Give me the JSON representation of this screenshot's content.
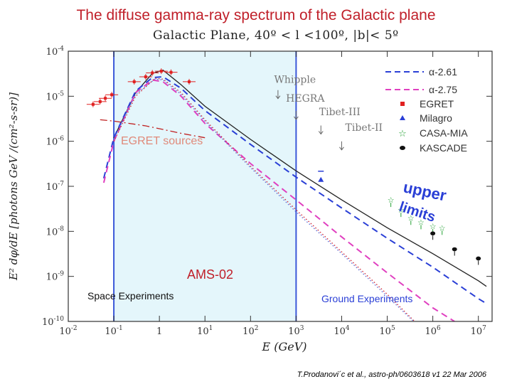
{
  "slide_title": "The diffuse gamma-ray spectrum of the Galactic plane",
  "citation": "T.Prodanovi´c et al., astro-ph/0603618 v1 22 Mar 2006",
  "chart_data": {
    "type": "line",
    "title": "Galactic Plane, 40º < l <100º, |b|< 5º",
    "xlabel": "E (GeV)",
    "ylabel": "E² dφ/dE [photons GeV /(cm²-s-sr)]",
    "x_scale": "log",
    "y_scale": "log",
    "xlim": [
      0.01,
      20000000
    ],
    "ylim": [
      1e-10,
      0.0001
    ],
    "x_ticks": [
      {
        "v": 0.01,
        "b": "10",
        "e": "-2"
      },
      {
        "v": 0.1,
        "b": "10",
        "e": "-1"
      },
      {
        "v": 1,
        "b": "1",
        "e": ""
      },
      {
        "v": 10,
        "b": "10",
        "e": "1"
      },
      {
        "v": 100,
        "b": "10",
        "e": "2"
      },
      {
        "v": 1000,
        "b": "10",
        "e": "3"
      },
      {
        "v": 10000,
        "b": "10",
        "e": "4"
      },
      {
        "v": 100000,
        "b": "10",
        "e": "5"
      },
      {
        "v": 1000000,
        "b": "10",
        "e": "6"
      },
      {
        "v": 10000000,
        "b": "10",
        "e": "7"
      }
    ],
    "y_ticks": [
      {
        "v": 0.0001,
        "b": "10",
        "e": "-4"
      },
      {
        "v": 1e-05,
        "b": "10",
        "e": "-5"
      },
      {
        "v": 1e-06,
        "b": "10",
        "e": "-6"
      },
      {
        "v": 1e-07,
        "b": "10",
        "e": "-7"
      },
      {
        "v": 1e-08,
        "b": "10",
        "e": "-8"
      },
      {
        "v": 1e-09,
        "b": "10",
        "e": "-9"
      },
      {
        "v": 1e-10,
        "b": "10",
        "e": "-10"
      }
    ],
    "legend": [
      {
        "label": "α-2.61",
        "marker": "dashed",
        "color": "#2a3fd6"
      },
      {
        "label": "α-2.75",
        "marker": "dashed",
        "color": "#e040c0"
      },
      {
        "label": "EGRET",
        "marker": "square",
        "color": "#e02020"
      },
      {
        "label": "Milagro",
        "marker": "triangle",
        "color": "#2a3fd6"
      },
      {
        "label": "CASA-MIA",
        "marker": "star",
        "color": "#22a032"
      },
      {
        "label": "KASCADE",
        "marker": "circle",
        "color": "#111111"
      }
    ],
    "series": [
      {
        "name": "total",
        "style": "solid",
        "color": "#222222",
        "points": [
          [
            0.1,
            1.2e-06
          ],
          [
            0.3,
            1.2e-05
          ],
          [
            0.7,
            3.2e-05
          ],
          [
            1.2,
            3.8e-05
          ],
          [
            3,
            1.8e-05
          ],
          [
            10,
            6e-06
          ],
          [
            100,
            1.1e-06
          ],
          [
            1000,
            2.2e-07
          ],
          [
            10000,
            5e-08
          ],
          [
            100000,
            1.2e-08
          ],
          [
            1000000,
            3.2e-09
          ],
          [
            10000000,
            8e-10
          ],
          [
            15000000,
            6e-10
          ]
        ]
      },
      {
        "name": "α-2.61",
        "style": "dashed",
        "color": "#2a3fd6",
        "points": [
          [
            0.06,
            1.5e-07
          ],
          [
            0.1,
            1.2e-06
          ],
          [
            0.3,
            1.3e-05
          ],
          [
            0.7,
            2.6e-05
          ],
          [
            1.2,
            2.7e-05
          ],
          [
            3,
            1.5e-05
          ],
          [
            10,
            4.8e-06
          ],
          [
            100,
            8.5e-07
          ],
          [
            1000,
            1.6e-07
          ],
          [
            10000,
            3.3e-08
          ],
          [
            100000,
            7e-09
          ],
          [
            1000000,
            1.6e-09
          ],
          [
            10000000,
            3.2e-10
          ],
          [
            15000000,
            2.5e-10
          ]
        ]
      },
      {
        "name": "α-2.75",
        "style": "dashed",
        "color": "#e040c0",
        "points": [
          [
            0.06,
            1.2e-07
          ],
          [
            0.1,
            1e-06
          ],
          [
            0.3,
            1.2e-05
          ],
          [
            0.7,
            2.3e-05
          ],
          [
            1.2,
            2.1e-05
          ],
          [
            3,
            1e-05
          ],
          [
            10,
            2.5e-06
          ],
          [
            100,
            3.2e-07
          ],
          [
            1000,
            5e-08
          ],
          [
            10000,
            7.5e-09
          ],
          [
            100000,
            1.2e-09
          ],
          [
            1000000,
            2e-10
          ],
          [
            3000000,
            1e-10
          ]
        ]
      },
      {
        "name": "diffuse-dotted-red",
        "style": "dotted",
        "color": "#d02030",
        "points": [
          [
            0.1,
            1e-06
          ],
          [
            0.3,
            1e-05
          ],
          [
            0.8,
            2.5e-05
          ],
          [
            1.2,
            2.4e-05
          ],
          [
            3,
            1.2e-05
          ],
          [
            10,
            3e-06
          ],
          [
            100,
            2.8e-07
          ],
          [
            1000,
            3e-08
          ],
          [
            10000,
            3.5e-09
          ],
          [
            100000,
            4e-10
          ],
          [
            400000,
            1e-10
          ]
        ]
      },
      {
        "name": "diffuse-dotted-blue",
        "style": "dotted",
        "color": "#5a6ad8",
        "points": [
          [
            0.1,
            1.1e-06
          ],
          [
            0.3,
            1.1e-05
          ],
          [
            0.8,
            2.4e-05
          ],
          [
            1.2,
            2.3e-05
          ],
          [
            3,
            1.1e-05
          ],
          [
            10,
            2.8e-06
          ],
          [
            100,
            2.6e-07
          ],
          [
            1000,
            2.7e-08
          ],
          [
            10000,
            3.2e-09
          ],
          [
            100000,
            3.6e-10
          ],
          [
            380000,
            1e-10
          ]
        ]
      },
      {
        "name": "EGRET sources",
        "style": "dashdot",
        "color": "#c02020",
        "points": [
          [
            0.05,
            3e-06
          ],
          [
            0.1,
            2.8e-06
          ],
          [
            0.5,
            2.2e-06
          ],
          [
            1,
            1.9e-06
          ],
          [
            3,
            1.5e-06
          ],
          [
            10,
            1.2e-06
          ]
        ]
      }
    ],
    "egret_points": [
      {
        "x": 0.035,
        "y": 6.6e-06
      },
      {
        "x": 0.05,
        "y": 7.6e-06
      },
      {
        "x": 0.065,
        "y": 9e-06
      },
      {
        "x": 0.09,
        "y": 1.08e-05
      },
      {
        "x": 0.28,
        "y": 2.1e-05
      },
      {
        "x": 0.5,
        "y": 2.7e-05
      },
      {
        "x": 0.7,
        "y": 3.3e-05
      },
      {
        "x": 1.1,
        "y": 3.6e-05
      },
      {
        "x": 1.8,
        "y": 3.4e-05
      },
      {
        "x": 4.5,
        "y": 2.1e-05
      }
    ],
    "milagro_points": [
      {
        "x": 3500,
        "y": 1.4e-07
      }
    ],
    "casa_mia_points": [
      {
        "x": 120000,
        "y": 5e-08
      },
      {
        "x": 200000,
        "y": 3e-08
      },
      {
        "x": 330000,
        "y": 2e-08
      },
      {
        "x": 550000,
        "y": 1.6e-08
      },
      {
        "x": 1000000,
        "y": 1.3e-08
      },
      {
        "x": 1600000,
        "y": 1.2e-08
      }
    ],
    "kascade_points": [
      {
        "x": 1000000,
        "y": 9e-09
      },
      {
        "x": 3000000,
        "y": 4e-09
      },
      {
        "x": 10000000,
        "y": 2.5e-09
      }
    ],
    "upper_limit_markers": [
      {
        "label": "Whipple",
        "x": 400,
        "y": 1.1e-05,
        "lx": 330,
        "ly": 2e-05
      },
      {
        "label": "HEGRA",
        "x": 1000,
        "y": 3.8e-06,
        "lx": 600,
        "ly": 7.5e-06
      },
      {
        "label": "Tibet-III",
        "x": 3500,
        "y": 1.8e-06,
        "lx": 3200,
        "ly": 3.8e-06
      },
      {
        "label": "Tibet-II",
        "x": 10000,
        "y": 8e-07,
        "lx": 12000,
        "ly": 1.7e-06
      }
    ],
    "annotations": {
      "egret_sources": "EGRET sources",
      "upper_limits_line1": "upper",
      "upper_limits_line2": "limits",
      "ams02": "AMS-02",
      "space_experiments": "Space Experiments",
      "ground_experiments": "Ground Experiments"
    },
    "space_band": {
      "x_from": 0.1,
      "x_to": 1000
    }
  }
}
